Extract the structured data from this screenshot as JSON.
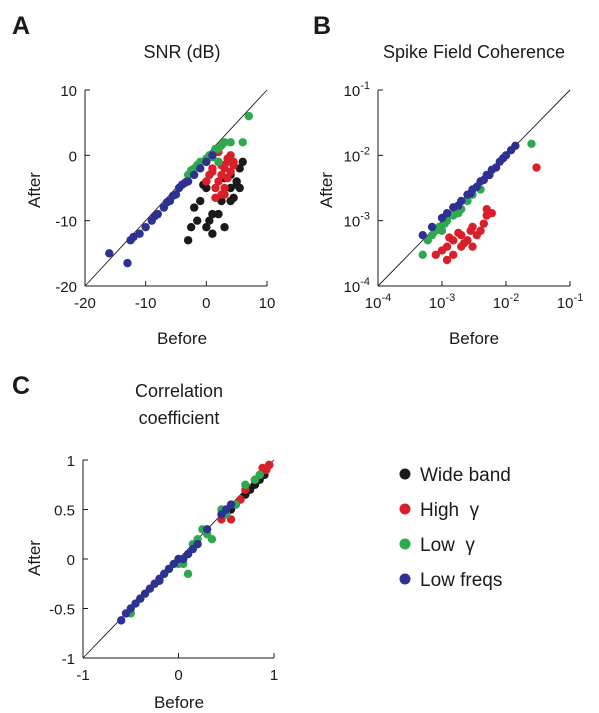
{
  "colors": {
    "wide_band": "#1a1a1a",
    "high_gamma": "#d9202a",
    "low_gamma": "#2fa84f",
    "low_freqs": "#2e3192",
    "axis": "#1a1a1a"
  },
  "legend": {
    "entries": [
      {
        "label": "Wide band",
        "color_key": "wide_band"
      },
      {
        "label": "High  γ",
        "color_key": "high_gamma"
      },
      {
        "label": "Low  γ",
        "color_key": "low_gamma"
      },
      {
        "label": "Low freqs",
        "color_key": "low_freqs"
      }
    ]
  },
  "chart_data": [
    {
      "panel_letter": "A",
      "type": "scatter",
      "title": "SNR (dB)",
      "xlabel": "Before",
      "ylabel": "After",
      "scale": "linear",
      "xlim": [
        -20,
        10
      ],
      "ylim": [
        -20,
        10
      ],
      "xticks": [
        -20,
        -10,
        0,
        10
      ],
      "xtick_labels": [
        "-20",
        "-10",
        "0",
        "10"
      ],
      "yticks": [
        -20,
        -10,
        0,
        10
      ],
      "ytick_labels": [
        "-20",
        "-10",
        "0",
        "10"
      ],
      "identity_line": true,
      "series": [
        {
          "color_key": "wide_band",
          "points": [
            [
              -3,
              -13
            ],
            [
              -2.5,
              -11
            ],
            [
              -2,
              -8
            ],
            [
              -1.5,
              -10
            ],
            [
              -1,
              -7
            ],
            [
              0,
              -11
            ],
            [
              0.5,
              -10
            ],
            [
              1,
              -9
            ],
            [
              1,
              -12
            ],
            [
              2,
              -9
            ],
            [
              2.5,
              -7
            ],
            [
              3,
              -11
            ],
            [
              3,
              -6
            ],
            [
              4,
              -7
            ],
            [
              4,
              -5
            ],
            [
              4.5,
              -6.5
            ],
            [
              4,
              -3
            ],
            [
              5,
              -4
            ],
            [
              5.5,
              -2
            ],
            [
              6,
              -1
            ],
            [
              3,
              -3.5
            ],
            [
              -0.5,
              -4.5
            ],
            [
              0,
              -5
            ],
            [
              5,
              -4.5
            ],
            [
              5.5,
              -5
            ]
          ]
        },
        {
          "color_key": "high_gamma",
          "points": [
            [
              0,
              -4
            ],
            [
              0.5,
              -3
            ],
            [
              1,
              -2
            ],
            [
              1.5,
              -5
            ],
            [
              2,
              -1
            ],
            [
              2,
              -4
            ],
            [
              2.5,
              -3
            ],
            [
              3,
              -2
            ],
            [
              3,
              -5
            ],
            [
              3.5,
              -1
            ],
            [
              3.5,
              -3.5
            ],
            [
              4,
              -2.5
            ],
            [
              4,
              0
            ],
            [
              4.5,
              -1
            ],
            [
              2.5,
              -6
            ],
            [
              1.5,
              -6.5
            ],
            [
              3,
              -6
            ],
            [
              2,
              0.5
            ],
            [
              3.5,
              -0.5
            ],
            [
              4.5,
              -1.5
            ],
            [
              1,
              -2.5
            ],
            [
              2.5,
              -1.5
            ]
          ]
        },
        {
          "color_key": "low_gamma",
          "points": [
            [
              -3,
              -3
            ],
            [
              -2,
              -2
            ],
            [
              -1,
              -1
            ],
            [
              0,
              -0.5
            ],
            [
              0.5,
              0
            ],
            [
              1,
              0
            ],
            [
              1.5,
              1
            ],
            [
              2,
              1
            ],
            [
              3,
              2
            ],
            [
              4,
              2
            ],
            [
              6,
              2
            ],
            [
              7,
              6
            ],
            [
              -1.5,
              -1.5
            ],
            [
              0,
              -1
            ],
            [
              2,
              -1
            ],
            [
              1,
              -0.3
            ],
            [
              2.5,
              1.5
            ],
            [
              -2.5,
              -2.3
            ]
          ]
        },
        {
          "color_key": "low_freqs",
          "points": [
            [
              -16,
              -15
            ],
            [
              -13,
              -16.5
            ],
            [
              -12.5,
              -13
            ],
            [
              -12,
              -12.5
            ],
            [
              -11,
              -12
            ],
            [
              -10,
              -11
            ],
            [
              -9,
              -10
            ],
            [
              -8,
              -9
            ],
            [
              -7,
              -8
            ],
            [
              -6,
              -7
            ],
            [
              -5,
              -6
            ],
            [
              -4.5,
              -5
            ],
            [
              -4,
              -4.5
            ],
            [
              -3,
              -4
            ],
            [
              -2,
              -3
            ],
            [
              -1,
              -2
            ],
            [
              0,
              -1
            ],
            [
              1,
              0
            ],
            [
              -6.5,
              -7.2
            ],
            [
              -8.5,
              -9.3
            ],
            [
              -3.5,
              -4.2
            ],
            [
              -5.5,
              -6.2
            ]
          ]
        }
      ]
    },
    {
      "panel_letter": "B",
      "type": "scatter",
      "title": "Spike Field Coherence",
      "xlabel": "Before",
      "ylabel": "After",
      "scale": "log",
      "xlim": [
        0.0001,
        0.1
      ],
      "ylim": [
        0.0001,
        0.1
      ],
      "xticks": [
        0.0001,
        0.001,
        0.01,
        0.1
      ],
      "xtick_labels": [
        "10^-4",
        "10^-3",
        "10^-2",
        "10^-1"
      ],
      "yticks": [
        0.0001,
        0.001,
        0.01,
        0.1
      ],
      "ytick_labels": [
        "10^-4",
        "10^-3",
        "10^-2",
        "10^-1"
      ],
      "identity_line": true,
      "series": [
        {
          "color_key": "high_gamma",
          "points": [
            [
              0.0008,
              0.0003
            ],
            [
              0.001,
              0.00035
            ],
            [
              0.0012,
              0.00025
            ],
            [
              0.0012,
              0.0004
            ],
            [
              0.0015,
              0.0003
            ],
            [
              0.0015,
              0.0005
            ],
            [
              0.002,
              0.0004
            ],
            [
              0.002,
              0.0006
            ],
            [
              0.0025,
              0.0005
            ],
            [
              0.003,
              0.0008
            ],
            [
              0.003,
              0.0004
            ],
            [
              0.004,
              0.0007
            ],
            [
              0.005,
              0.0012
            ],
            [
              0.005,
              0.0015
            ],
            [
              0.006,
              0.0013
            ],
            [
              0.03,
              0.0065
            ],
            [
              0.0018,
              0.00065
            ],
            [
              0.0022,
              0.00045
            ],
            [
              0.0035,
              0.0006
            ],
            [
              0.0028,
              0.0007
            ],
            [
              0.0045,
              0.0009
            ],
            [
              0.0013,
              0.00055
            ]
          ]
        },
        {
          "color_key": "low_gamma",
          "points": [
            [
              0.0005,
              0.0003
            ],
            [
              0.0006,
              0.0005
            ],
            [
              0.0007,
              0.0006
            ],
            [
              0.0009,
              0.0008
            ],
            [
              0.001,
              0.0007
            ],
            [
              0.0012,
              0.001
            ],
            [
              0.0015,
              0.0012
            ],
            [
              0.002,
              0.0015
            ],
            [
              0.0025,
              0.002
            ],
            [
              0.003,
              0.0025
            ],
            [
              0.004,
              0.003
            ],
            [
              0.025,
              0.015
            ],
            [
              0.0012,
              0.0011
            ],
            [
              0.0018,
              0.0013
            ],
            [
              0.0008,
              0.0007
            ],
            [
              0.0011,
              0.0009
            ]
          ]
        },
        {
          "color_key": "low_freqs",
          "points": [
            [
              0.0005,
              0.0006
            ],
            [
              0.0007,
              0.0008
            ],
            [
              0.001,
              0.0011
            ],
            [
              0.0012,
              0.0013
            ],
            [
              0.0015,
              0.0016
            ],
            [
              0.002,
              0.002
            ],
            [
              0.0025,
              0.0025
            ],
            [
              0.003,
              0.003
            ],
            [
              0.004,
              0.004
            ],
            [
              0.005,
              0.005
            ],
            [
              0.006,
              0.006
            ],
            [
              0.007,
              0.0065
            ],
            [
              0.008,
              0.008
            ],
            [
              0.009,
              0.009
            ],
            [
              0.01,
              0.01
            ],
            [
              0.012,
              0.012
            ],
            [
              0.014,
              0.014
            ],
            [
              0.0035,
              0.0033
            ],
            [
              0.0045,
              0.0042
            ],
            [
              0.0055,
              0.005
            ],
            [
              0.0018,
              0.0017
            ],
            [
              0.0028,
              0.0026
            ]
          ]
        }
      ]
    },
    {
      "panel_letter": "C",
      "type": "scatter",
      "title": "Correlation\ncoefficient",
      "title_lines": [
        "Correlation",
        "coefficient"
      ],
      "xlabel": "Before",
      "ylabel": "After",
      "scale": "linear",
      "xlim": [
        -1,
        1
      ],
      "ylim": [
        -1,
        1
      ],
      "xticks": [
        -1,
        0,
        1
      ],
      "xtick_labels": [
        "-1",
        "0",
        "1"
      ],
      "yticks": [
        -1,
        -0.5,
        0,
        0.5,
        1
      ],
      "ytick_labels": [
        "-1",
        "-0.5",
        "0",
        "0.5",
        "1"
      ],
      "identity_line": true,
      "series": [
        {
          "color_key": "wide_band",
          "points": [
            [
              0.7,
              0.65
            ],
            [
              0.75,
              0.7
            ],
            [
              0.8,
              0.75
            ],
            [
              0.85,
              0.8
            ],
            [
              0.9,
              0.85
            ],
            [
              0.95,
              0.95
            ],
            [
              0.55,
              0.5
            ],
            [
              0.6,
              0.55
            ]
          ]
        },
        {
          "color_key": "high_gamma",
          "points": [
            [
              0.95,
              0.95
            ],
            [
              0.9,
              0.9
            ],
            [
              0.85,
              0.85
            ],
            [
              0.8,
              0.8
            ],
            [
              0.6,
              0.55
            ],
            [
              0.5,
              0.45
            ],
            [
              0.45,
              0.4
            ],
            [
              0.55,
              0.4
            ],
            [
              0.65,
              0.6
            ],
            [
              0.7,
              0.7
            ],
            [
              0.92,
              0.9
            ],
            [
              0.88,
              0.92
            ]
          ]
        },
        {
          "color_key": "low_gamma",
          "points": [
            [
              -0.5,
              -0.55
            ],
            [
              -0.4,
              -0.4
            ],
            [
              -0.1,
              -0.1
            ],
            [
              0,
              -0.05
            ],
            [
              0.05,
              -0.05
            ],
            [
              0.1,
              -0.15
            ],
            [
              0.15,
              0.15
            ],
            [
              0.2,
              0.2
            ],
            [
              0.25,
              0.3
            ],
            [
              0.3,
              0.25
            ],
            [
              0.35,
              0.2
            ],
            [
              0.5,
              0.45
            ],
            [
              0.6,
              0.55
            ],
            [
              0.7,
              0.75
            ],
            [
              0.8,
              0.8
            ],
            [
              0.85,
              0.85
            ],
            [
              0.1,
              0.05
            ],
            [
              0.45,
              0.5
            ]
          ]
        },
        {
          "color_key": "low_freqs",
          "points": [
            [
              -0.6,
              -0.62
            ],
            [
              -0.5,
              -0.5
            ],
            [
              -0.45,
              -0.45
            ],
            [
              -0.4,
              -0.4
            ],
            [
              -0.35,
              -0.35
            ],
            [
              -0.3,
              -0.3
            ],
            [
              -0.25,
              -0.25
            ],
            [
              -0.2,
              -0.2
            ],
            [
              -0.15,
              -0.15
            ],
            [
              -0.1,
              -0.1
            ],
            [
              -0.05,
              -0.05
            ],
            [
              0,
              0
            ],
            [
              0.05,
              0
            ],
            [
              0.1,
              0.05
            ],
            [
              0.15,
              0.1
            ],
            [
              0.2,
              0.15
            ],
            [
              0.5,
              0.5
            ],
            [
              0.55,
              0.55
            ],
            [
              0.45,
              0.45
            ],
            [
              0.3,
              0.3
            ],
            [
              -0.55,
              -0.55
            ],
            [
              -0.2,
              -0.22
            ]
          ]
        }
      ]
    }
  ]
}
